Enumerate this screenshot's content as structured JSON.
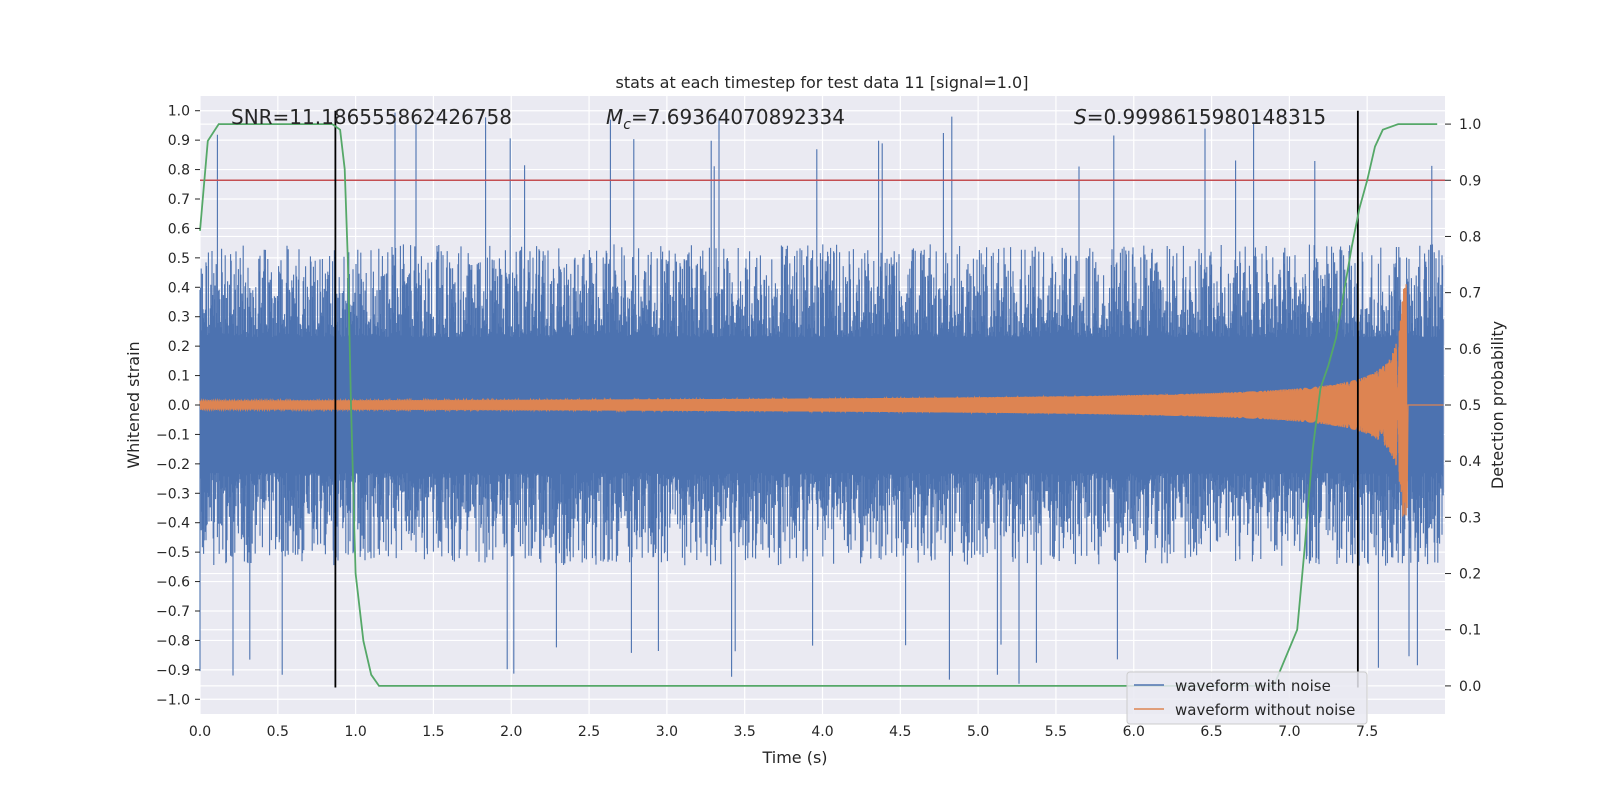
{
  "chart_data": {
    "type": "line",
    "title": "stats at each timestep for test data 11 [signal=1.0]",
    "xlabel": "Time (s)",
    "ylabel": "Whitened strain",
    "y2label": "Detection probability",
    "xlim": [
      0.0,
      8.0
    ],
    "ylim": [
      -1.05,
      1.05
    ],
    "y2lim": [
      -0.05,
      1.05
    ],
    "x_ticks": [
      0.0,
      0.5,
      1.0,
      1.5,
      2.0,
      2.5,
      3.0,
      3.5,
      4.0,
      4.5,
      5.0,
      5.5,
      6.0,
      6.5,
      7.0,
      7.5
    ],
    "x_tick_labels": [
      "0.0",
      "0.5",
      "1.0",
      "1.5",
      "2.0",
      "2.5",
      "3.0",
      "3.5",
      "4.0",
      "4.5",
      "5.0",
      "5.5",
      "6.0",
      "6.5",
      "7.0",
      "7.5"
    ],
    "y_ticks": [
      1.0,
      0.9,
      0.8,
      0.7,
      0.6,
      0.5,
      0.4,
      0.3,
      0.2,
      0.1,
      0.0,
      -0.1,
      -0.2,
      -0.3,
      -0.4,
      -0.5,
      -0.6,
      -0.7,
      -0.8,
      -0.9,
      -1.0
    ],
    "y_tick_labels": [
      "1.0",
      "0.9",
      "0.8",
      "0.7",
      "0.6",
      "0.5",
      "0.4",
      "0.3",
      "0.2",
      "0.1",
      "0.0",
      "−0.1",
      "−0.2",
      "−0.3",
      "−0.4",
      "−0.5",
      "−0.6",
      "−0.7",
      "−0.8",
      "−0.9",
      "−1.0"
    ],
    "y2_ticks": [
      1.0,
      0.9,
      0.8,
      0.7,
      0.6,
      0.5,
      0.4,
      0.3,
      0.2,
      0.1,
      0.0
    ],
    "y2_tick_labels": [
      "1.0",
      "0.9",
      "0.8",
      "0.7",
      "0.6",
      "0.5",
      "0.4",
      "0.3",
      "0.2",
      "0.1",
      "0.0"
    ],
    "annotations": {
      "snr": "SNR=11.186555862426758",
      "mc_symbol": "M",
      "mc_sub": "c",
      "mc_value": "=7.69364070892334",
      "s_symbol": "S",
      "s_value": "=0.9998615980148315"
    },
    "legend": {
      "position": "lower-right",
      "entries": [
        {
          "label": "waveform with noise",
          "color": "#4c72b0"
        },
        {
          "label": "waveform without noise",
          "color": "#dd8452"
        }
      ]
    },
    "series": [
      {
        "name": "waveform with noise",
        "axis": "left",
        "color": "#4c72b0",
        "x_range": [
          0.0,
          7.99
        ],
        "typical_envelope": 0.42,
        "peak_range": [
          -0.95,
          1.0
        ]
      },
      {
        "name": "waveform without noise",
        "axis": "left",
        "color": "#dd8452",
        "description": "chirp",
        "x_start": 0.0,
        "merger_time": 7.75,
        "initial_amplitude": 0.015,
        "peak_max": 0.41,
        "peak_min": -0.35,
        "after_merger_value": 0.0
      },
      {
        "name": "detection probability",
        "axis": "right",
        "color": "#55a868",
        "x": [
          0.0,
          0.05,
          0.12,
          0.2,
          0.3,
          0.5,
          0.7,
          0.85,
          0.9,
          0.93,
          0.95,
          0.97,
          1.0,
          1.05,
          1.1,
          1.15,
          1.5,
          2.0,
          3.0,
          4.0,
          5.0,
          6.0,
          6.9,
          7.05,
          7.1,
          7.15,
          7.2,
          7.25,
          7.3,
          7.35,
          7.4,
          7.45,
          7.5,
          7.55,
          7.6,
          7.7,
          7.8,
          7.95
        ],
        "values": [
          0.81,
          0.97,
          1.0,
          1.0,
          1.0,
          1.0,
          1.0,
          1.0,
          0.99,
          0.92,
          0.76,
          0.5,
          0.2,
          0.08,
          0.02,
          0.0,
          0.0,
          0.0,
          0.0,
          0.0,
          0.0,
          0.0,
          0.0,
          0.1,
          0.25,
          0.42,
          0.53,
          0.57,
          0.62,
          0.7,
          0.78,
          0.85,
          0.9,
          0.96,
          0.99,
          1.0,
          1.0,
          1.0
        ]
      }
    ],
    "hlines": [
      {
        "axis": "right",
        "value": 0.9,
        "color": "#c44e52"
      }
    ],
    "vlines": [
      {
        "x": 0.87,
        "color": "#000000"
      },
      {
        "x": 7.44,
        "color": "#000000"
      }
    ]
  }
}
